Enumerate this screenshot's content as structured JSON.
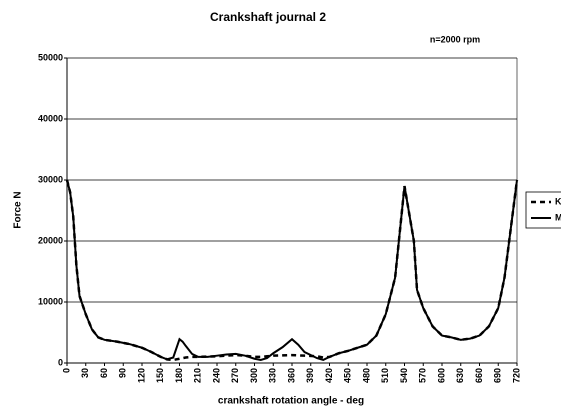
{
  "chart_data": {
    "type": "line",
    "title": "Crankshaft journal 2",
    "annotation": "n=2000 rpm",
    "xlabel": "crankshaft rotation angle - deg",
    "ylabel": "Force N",
    "x": [
      0,
      5,
      10,
      15,
      20,
      30,
      40,
      50,
      60,
      80,
      100,
      120,
      135,
      150,
      160,
      170,
      180,
      185,
      190,
      200,
      210,
      225,
      240,
      255,
      270,
      285,
      300,
      310,
      320,
      330,
      345,
      360,
      370,
      380,
      400,
      410,
      420,
      435,
      450,
      465,
      480,
      495,
      510,
      525,
      540,
      545,
      555,
      560,
      570,
      585,
      600,
      615,
      630,
      645,
      660,
      675,
      690,
      700,
      710,
      720
    ],
    "series": [
      {
        "name": "K",
        "color": "#000000",
        "dash": true,
        "values": [
          30000,
          28000,
          24000,
          16000,
          11000,
          8000,
          5500,
          4200,
          3800,
          3500,
          3100,
          2500,
          1800,
          1000,
          600,
          500,
          700,
          800,
          900,
          1000,
          1000,
          1050,
          1100,
          1200,
          1300,
          1200,
          1000,
          1000,
          1100,
          1200,
          1250,
          1300,
          1250,
          1200,
          1100,
          900,
          1000,
          1600,
          2000,
          2500,
          3000,
          4500,
          8000,
          14000,
          29000,
          26000,
          20000,
          12000,
          9000,
          6000,
          4500,
          4200,
          3800,
          4000,
          4500,
          6000,
          9000,
          14000,
          22000,
          30000
        ]
      },
      {
        "name": "M",
        "color": "#000000",
        "dash": false,
        "values": [
          30000,
          28000,
          24000,
          16000,
          11000,
          8000,
          5500,
          4200,
          3800,
          3500,
          3100,
          2500,
          1800,
          1000,
          600,
          900,
          3900,
          3500,
          2800,
          1500,
          1000,
          1000,
          1200,
          1400,
          1500,
          1200,
          700,
          500,
          800,
          1600,
          2600,
          3900,
          3000,
          1800,
          800,
          500,
          1000,
          1600,
          2000,
          2500,
          3000,
          4500,
          8000,
          14000,
          29000,
          26000,
          20000,
          12000,
          9000,
          6000,
          4500,
          4200,
          3800,
          4000,
          4500,
          6000,
          9000,
          14000,
          22000,
          30000
        ]
      }
    ],
    "xlim": [
      0,
      720
    ],
    "xticks": [
      0,
      30,
      60,
      90,
      120,
      150,
      180,
      210,
      240,
      270,
      300,
      330,
      360,
      390,
      420,
      450,
      480,
      510,
      540,
      570,
      600,
      630,
      660,
      690,
      720
    ],
    "ylim": [
      0,
      50000
    ],
    "yticks": [
      0,
      10000,
      20000,
      30000,
      40000,
      50000
    ],
    "grid": true,
    "legend": "right"
  }
}
